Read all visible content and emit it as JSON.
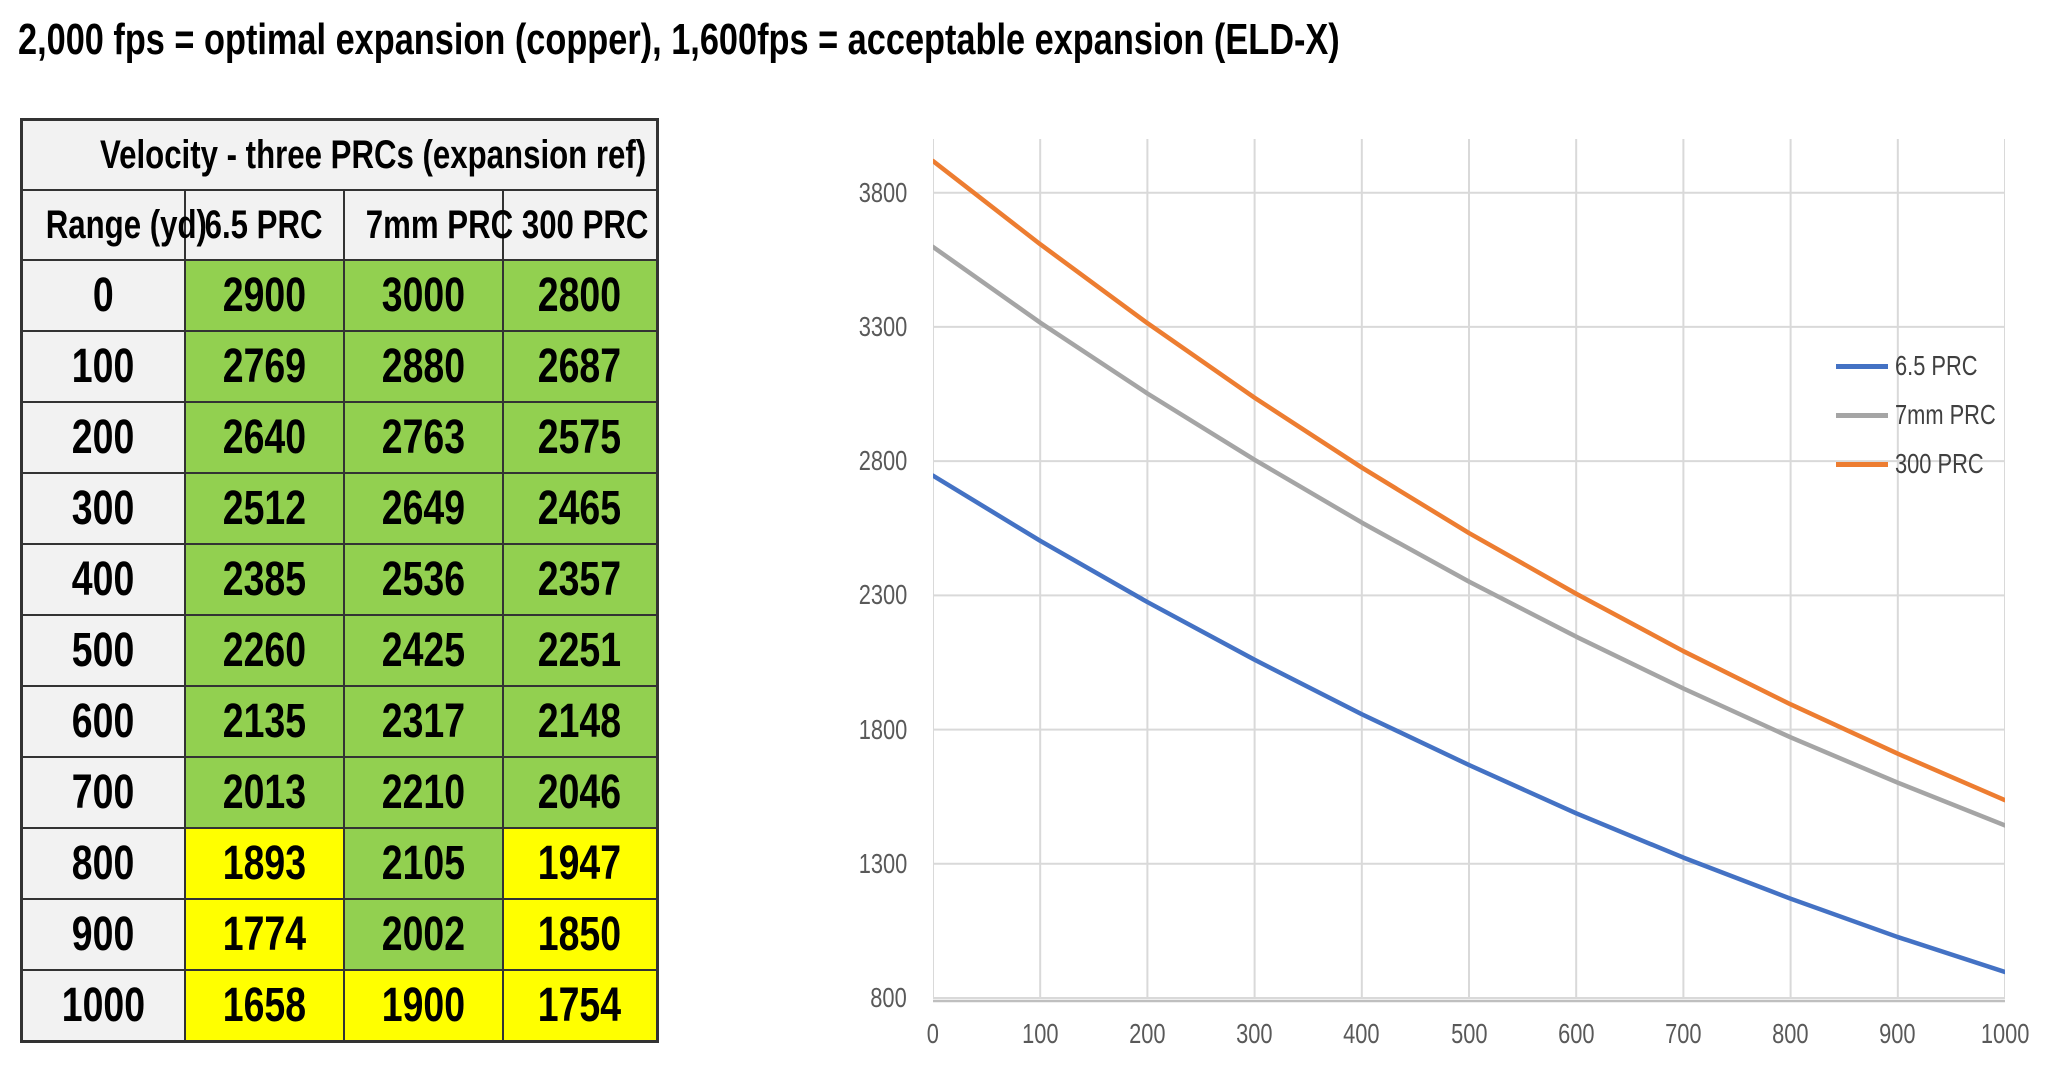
{
  "page_title": "2,000 fps = optimal expansion (copper), 1,600fps = acceptable expansion (ELD-X)",
  "table": {
    "title": "Velocity - three PRCs (expansion ref)",
    "headers": [
      "Range (yd)",
      "6.5 PRC",
      "7mm PRC",
      "300 PRC"
    ],
    "rows": [
      {
        "range": "0",
        "values": [
          "2900",
          "3000",
          "2800"
        ],
        "highlight": [
          "green",
          "green",
          "green"
        ]
      },
      {
        "range": "100",
        "values": [
          "2769",
          "2880",
          "2687"
        ],
        "highlight": [
          "green",
          "green",
          "green"
        ]
      },
      {
        "range": "200",
        "values": [
          "2640",
          "2763",
          "2575"
        ],
        "highlight": [
          "green",
          "green",
          "green"
        ]
      },
      {
        "range": "300",
        "values": [
          "2512",
          "2649",
          "2465"
        ],
        "highlight": [
          "green",
          "green",
          "green"
        ]
      },
      {
        "range": "400",
        "values": [
          "2385",
          "2536",
          "2357"
        ],
        "highlight": [
          "green",
          "green",
          "green"
        ]
      },
      {
        "range": "500",
        "values": [
          "2260",
          "2425",
          "2251"
        ],
        "highlight": [
          "green",
          "green",
          "green"
        ]
      },
      {
        "range": "600",
        "values": [
          "2135",
          "2317",
          "2148"
        ],
        "highlight": [
          "green",
          "green",
          "green"
        ]
      },
      {
        "range": "700",
        "values": [
          "2013",
          "2210",
          "2046"
        ],
        "highlight": [
          "green",
          "green",
          "green"
        ]
      },
      {
        "range": "800",
        "values": [
          "1893",
          "2105",
          "1947"
        ],
        "highlight": [
          "yellow",
          "green",
          "yellow"
        ]
      },
      {
        "range": "900",
        "values": [
          "1774",
          "2002",
          "1850"
        ],
        "highlight": [
          "yellow",
          "green",
          "yellow"
        ]
      },
      {
        "range": "1000",
        "values": [
          "1658",
          "1900",
          "1754"
        ],
        "highlight": [
          "yellow",
          "yellow",
          "yellow"
        ]
      }
    ]
  },
  "chart_data": {
    "type": "line",
    "title": "",
    "xlabel": "",
    "ylabel": "",
    "x": [
      0,
      100,
      200,
      300,
      400,
      500,
      600,
      700,
      800,
      900,
      1000
    ],
    "series": [
      {
        "name": "6.5 PRC",
        "color": "#4472C4",
        "values": [
          2746,
          2503,
          2275,
          2060,
          1857,
          1668,
          1488,
          1323,
          1170,
          1027,
          897
        ]
      },
      {
        "name": "7mm PRC",
        "color": "#A5A5A5",
        "values": [
          3598,
          3316,
          3052,
          2805,
          2571,
          2351,
          2146,
          1953,
          1771,
          1602,
          1443
        ]
      },
      {
        "name": "300 PRC",
        "color": "#ED7D31",
        "values": [
          3918,
          3608,
          3314,
          3036,
          2776,
          2532,
          2306,
          2092,
          1894,
          1710,
          1537
        ]
      }
    ],
    "x_ticks": [
      0,
      100,
      200,
      300,
      400,
      500,
      600,
      700,
      800,
      900,
      1000
    ],
    "y_ticks": [
      800,
      1300,
      1800,
      2300,
      2800,
      3300,
      3800
    ],
    "xlim": [
      0,
      1000
    ],
    "ylim": [
      800,
      4000
    ],
    "grid": true,
    "legend_position": "right-inside"
  },
  "colors": {
    "green_cell": "#92D050",
    "yellow_cell": "#FFFF00",
    "header_bg": "#F2F2F2",
    "table_border": "#333333",
    "gridline": "#D9D9D9",
    "axis_line": "#BFBFBF",
    "tick_label": "#595959",
    "legend_label": "#404040"
  }
}
